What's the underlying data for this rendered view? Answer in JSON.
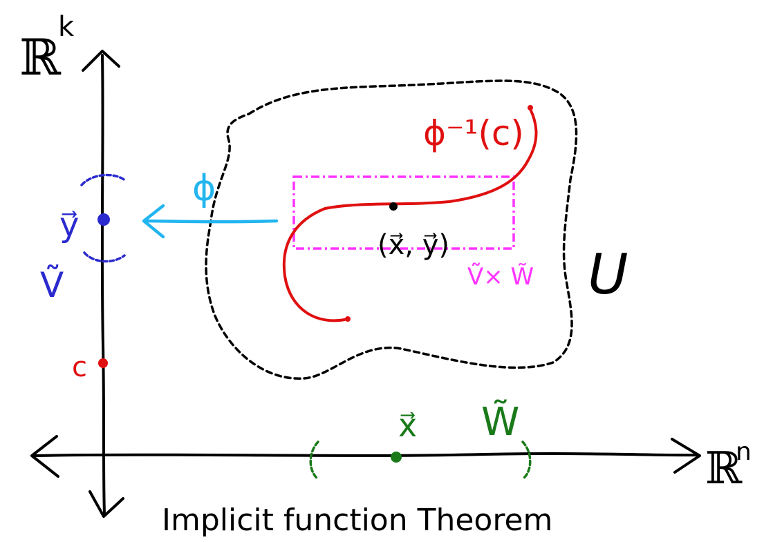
{
  "diagram": {
    "title": "Implicit function Theorem",
    "labels": {
      "vertical_space": "ℝ",
      "vertical_space_exponent": "k",
      "horizontal_space": "ℝ",
      "horizontal_space_exponent": "n",
      "map": "ϕ",
      "preimage": "ϕ⁻¹(c)",
      "point": "(x⃗, y⃗)",
      "box": "Ṽ× W̃",
      "region": "U",
      "y_point": "y⃗",
      "y_neighborhood": "Ṽ",
      "c_point": "c",
      "x_point": "x⃗",
      "x_neighborhood": "W̃"
    },
    "colors": {
      "ink": "#000000",
      "blue": "#2a2acf",
      "red": "#e01010",
      "magenta": "#ff33ff",
      "cyan": "#22b5ef",
      "green": "#1a7a1a"
    }
  }
}
